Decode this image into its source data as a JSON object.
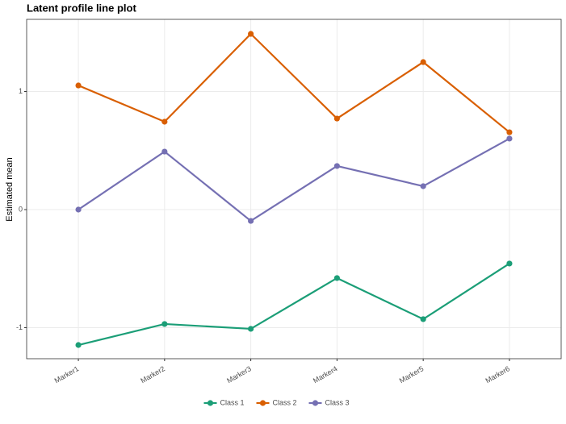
{
  "chart_data": {
    "type": "line",
    "title": "Latent profile line plot",
    "y_label": "Estimated mean",
    "categories": [
      "Marker1",
      "Marker2",
      "Marker3",
      "Marker4",
      "Marker5",
      "Marker6"
    ],
    "series": [
      {
        "name": "Class 1",
        "color": "#1b9e77",
        "values": [
          -1.147,
          -0.969,
          -1.01,
          -0.58,
          -0.928,
          -0.457
        ]
      },
      {
        "name": "Class 2",
        "color": "#d95f02",
        "values": [
          1.051,
          0.744,
          1.488,
          0.771,
          1.249,
          0.655
        ]
      },
      {
        "name": "Class 3",
        "color": "#7570b3",
        "values": [
          0,
          0.491,
          -0.096,
          0.369,
          0.198,
          0.601
        ]
      }
    ],
    "ylim": [
      -1.263,
      1.611
    ],
    "yticks": [
      -1,
      0,
      1
    ],
    "grid": true,
    "legend": "bottom"
  }
}
